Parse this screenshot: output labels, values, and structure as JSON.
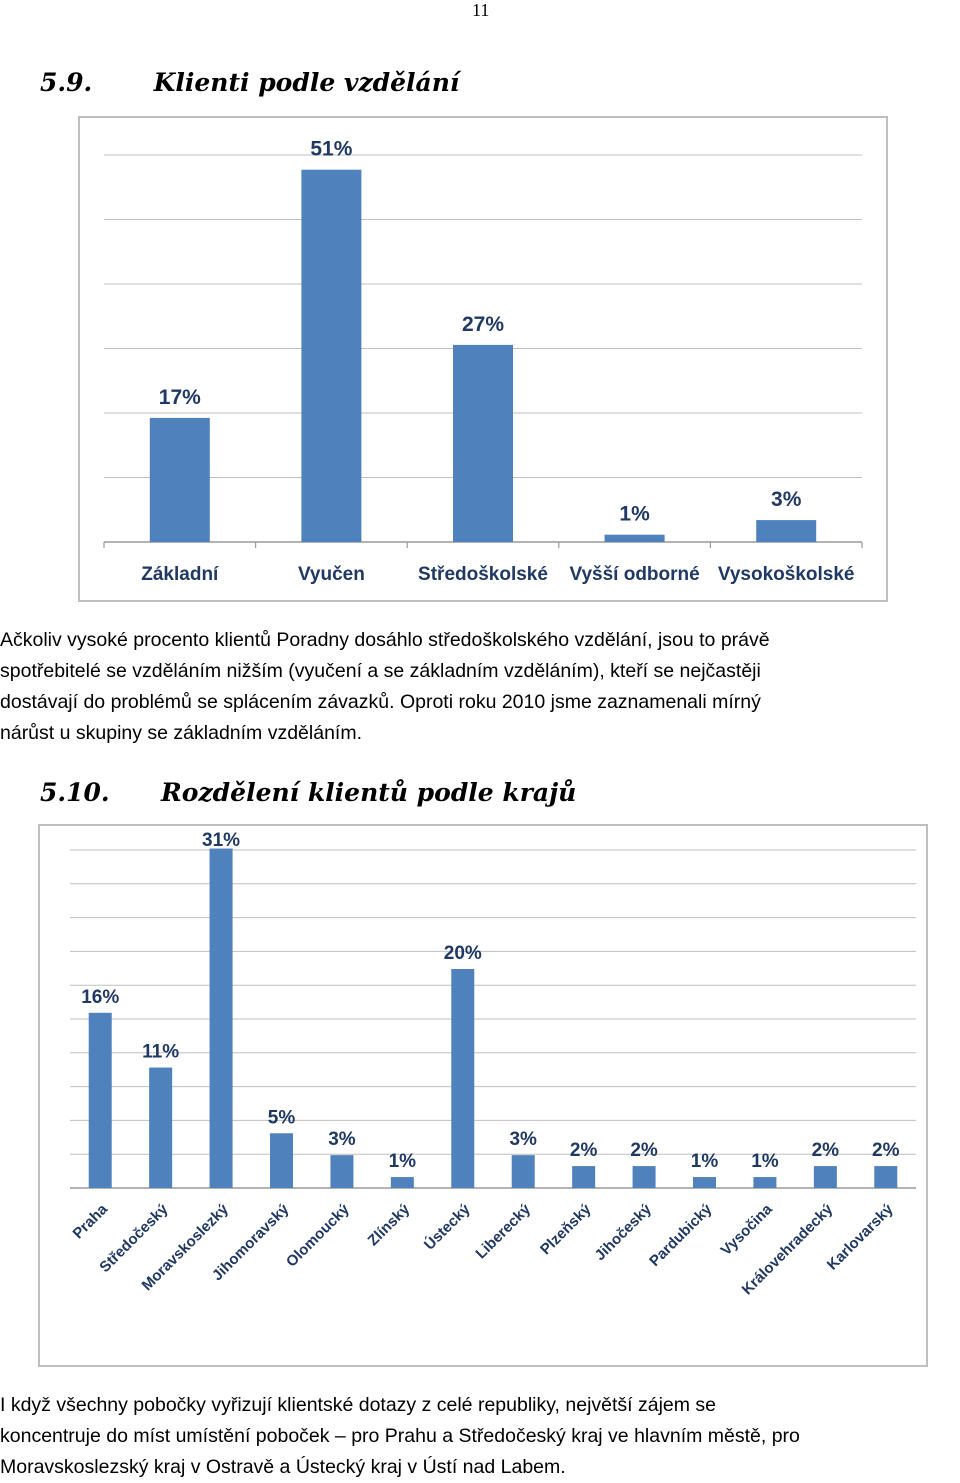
{
  "page_number": "11",
  "section1": {
    "number": "5.9.",
    "title": "Klienti podle vzdělání"
  },
  "paragraph1": [
    "Ačkoliv vysoké procento klientů Poradny dosáhlo středoškolského vzdělání, jsou to právě",
    "spotřebitelé se vzděláním nižším (vyučení a se základním vzděláním), kteří se nejčastěji",
    "dostávají do problémů se splácením závazků. Oproti roku 2010 jsme zaznamenali mírný",
    "nárůst u skupiny se základním vzděláním."
  ],
  "section2": {
    "number": "5.10.",
    "title": "Rozdělení klientů podle krajů"
  },
  "paragraph2": [
    "I když všechny pobočky vyřizují klientské dotazy z celé republiky, největší zájem se",
    "koncentruje do míst umístění poboček – pro Prahu a Středočeský kraj ve hlavním městě, pro",
    "Moravskoslezský kraj v Ostravě a Ústecký kraj v Ústí nad Labem."
  ],
  "chart_data": [
    {
      "type": "bar",
      "categories": [
        "Základní",
        "Vyučen",
        "Středoškolské",
        "Vyšší odborné",
        "Vysokoškolské"
      ],
      "values": [
        17,
        51,
        27,
        1,
        3
      ],
      "data_labels": [
        "17%",
        "51%",
        "27%",
        "1%",
        "3%"
      ],
      "ylim": [
        0,
        60
      ],
      "grid": true,
      "bar_color": "#4f81bd",
      "label_color": "#1f3864"
    },
    {
      "type": "bar",
      "categories": [
        "Praha",
        "Středočeský",
        "Moravskoslezký",
        "Jihomoravský",
        "Olomoucký",
        "Zlínský",
        "Ústecký",
        "Liberecký",
        "Plzeňský",
        "Jihočeský",
        "Pardubický",
        "Vysočina",
        "Královehradecký",
        "Karlovarský"
      ],
      "values": [
        16,
        11,
        31,
        5,
        3,
        1,
        20,
        3,
        2,
        2,
        1,
        1,
        2,
        2
      ],
      "data_labels": [
        "16%",
        "11%",
        "31%",
        "5%",
        "3%",
        "1%",
        "20%",
        "3%",
        "2%",
        "2%",
        "1%",
        "1%",
        "2%",
        "2%"
      ],
      "grid": true,
      "bar_color": "#4f81bd",
      "label_color": "#1f3864"
    }
  ]
}
